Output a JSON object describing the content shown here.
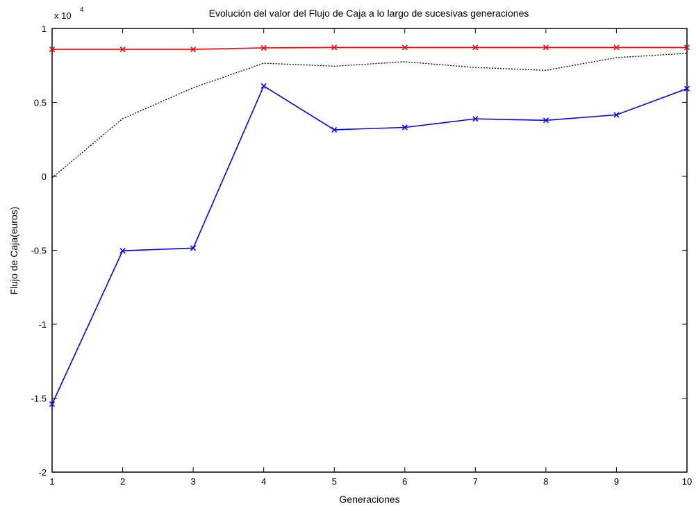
{
  "chart_data": {
    "type": "line",
    "title": "Evolución del valor del Flujo de Caja a lo largo de sucesivas generaciones",
    "xlabel": "Generaciones",
    "ylabel": "Flujo de Caja(euros)",
    "y_multiplier": {
      "base": "x 10",
      "exponent": "4"
    },
    "xlim": [
      1,
      10
    ],
    "ylim": [
      -20000,
      10000
    ],
    "x_ticks": [
      1,
      2,
      3,
      4,
      5,
      6,
      7,
      8,
      9,
      10
    ],
    "x_tick_labels": [
      "1",
      "2",
      "3",
      "4",
      "5",
      "6",
      "7",
      "8",
      "9",
      "10"
    ],
    "y_ticks": [
      -20000,
      -15000,
      -10000,
      -5000,
      0,
      5000,
      10000
    ],
    "y_tick_labels": [
      "-2",
      "-1.5",
      "-1",
      "-0.5",
      "0",
      "0.5",
      "1"
    ],
    "grid": false,
    "x": [
      1,
      2,
      3,
      4,
      5,
      6,
      7,
      8,
      9,
      10
    ],
    "series": [
      {
        "color": "#ff0000",
        "marker": "x",
        "dash": "solid",
        "values": [
          8590,
          8590,
          8590,
          8690,
          8720,
          8720,
          8720,
          8720,
          8720,
          8720
        ]
      },
      {
        "color": "#000000",
        "marker": "none",
        "dash": "dotted",
        "values": [
          -100,
          3900,
          5990,
          7650,
          7450,
          7750,
          7360,
          7170,
          8030,
          8320
        ]
      },
      {
        "color": "#0000ff",
        "marker": "x",
        "dash": "solid",
        "values": [
          -15400,
          -5030,
          -4850,
          6110,
          3150,
          3310,
          3890,
          3790,
          4160,
          5930
        ]
      }
    ]
  }
}
